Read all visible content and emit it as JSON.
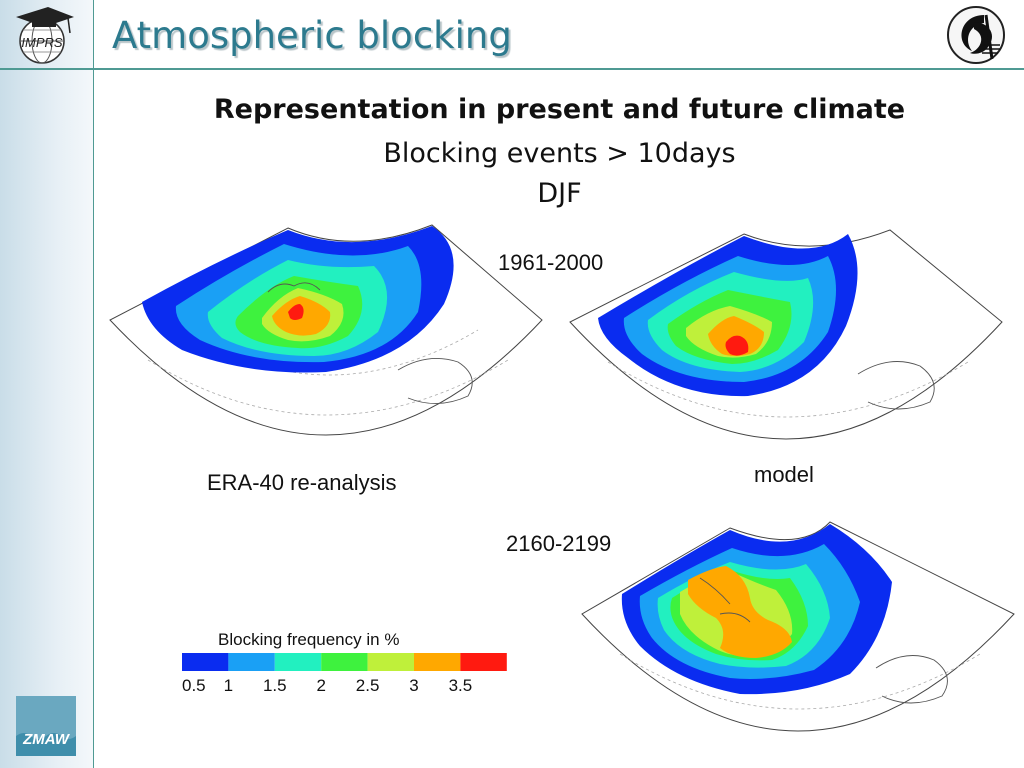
{
  "header": {
    "title": "Atmospheric blocking",
    "logo_left": "IMPRS",
    "logo_bottom": "ZMAW"
  },
  "content": {
    "heading": "Representation in present and future climate",
    "line2": "Blocking events > 10days",
    "line3": "DJF"
  },
  "panels": {
    "period_present": "1961-2000",
    "period_future": "2160-2199",
    "label_reanalysis": "ERA-40 re-analysis",
    "label_model": "model"
  },
  "chart_data": {
    "type": "heatmap",
    "title": "Blocking frequency in %",
    "colorbar_ticks": [
      "0.5",
      "1",
      "1.5",
      "2",
      "2.5",
      "3",
      "3.5"
    ],
    "levels": [
      0.5,
      1,
      1.5,
      2,
      2.5,
      3,
      3.5
    ],
    "colors": [
      "#0a2cf0",
      "#1aa0f5",
      "#22f0c0",
      "#3ef23e",
      "#bff03a",
      "#ffa800",
      "#ff1a10"
    ],
    "maps": [
      {
        "name": "ERA-40 re-analysis",
        "period": "1961-2000",
        "max_level": 3.5
      },
      {
        "name": "model",
        "period": "1961-2000",
        "max_level": 3.5
      },
      {
        "name": "model",
        "period": "2160-2199",
        "max_level": 3
      }
    ]
  }
}
